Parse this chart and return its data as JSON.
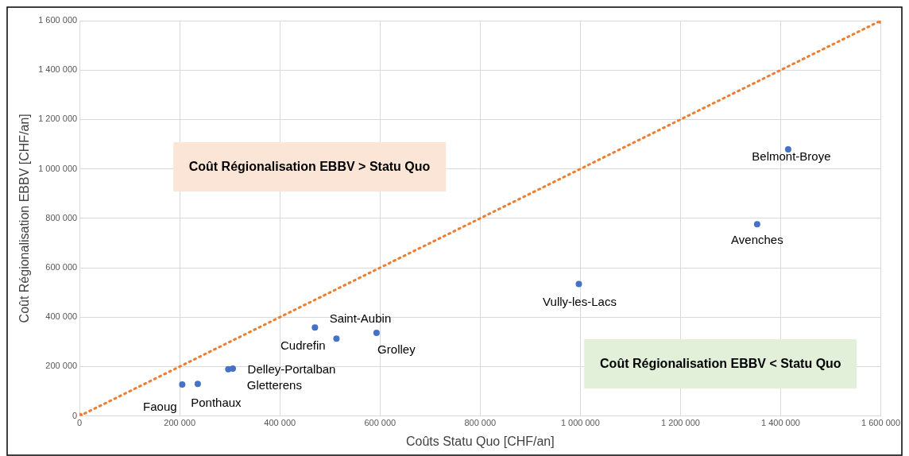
{
  "chart_data": {
    "type": "scatter",
    "xlabel": "Coûts Statu Quo [CHF/an]",
    "ylabel": "Coût Régionalisation EBBV [CHF/an]",
    "xlim": [
      0,
      1600000
    ],
    "ylim": [
      0,
      1600000
    ],
    "xticks": [
      0,
      {
        "value": 200000,
        "label": "200 000"
      },
      {
        "value": 400000,
        "label": "400 000"
      },
      {
        "value": 600000,
        "label": "600 000"
      },
      {
        "value": 800000,
        "label": "800 000"
      },
      {
        "value": 1000000,
        "label": "1 000 000"
      },
      {
        "value": 1200000,
        "label": "1 200 000"
      },
      {
        "value": 1400000,
        "label": "1 400 000"
      },
      {
        "value": 1600000,
        "label": "1 600 000"
      }
    ],
    "yticks": [
      0,
      {
        "value": 200000,
        "label": "200 000"
      },
      {
        "value": 400000,
        "label": "400 000"
      },
      {
        "value": 600000,
        "label": "600 000"
      },
      {
        "value": 800000,
        "label": "800 000"
      },
      {
        "value": 1000000,
        "label": "1 000 000"
      },
      {
        "value": 1200000,
        "label": "1 200 000"
      },
      {
        "value": 1400000,
        "label": "1 400 000"
      },
      {
        "value": 1600000,
        "label": "1 600 000"
      }
    ],
    "grid": true,
    "legend": false,
    "series": [
      {
        "color": "#4472c4",
        "marker": "circle",
        "x": [
          205000,
          236000,
          297000,
          306000,
          470000,
          513000,
          593000,
          997000,
          1353000,
          1415000
        ],
        "values": [
          127000,
          130000,
          189000,
          192000,
          358000,
          313000,
          336000,
          534000,
          776000,
          1079000
        ]
      },
      {
        "type": "line",
        "color": "#ed7d31",
        "marker": "circle",
        "line_style": "dotted",
        "x": [
          0,
          1600000
        ],
        "values": [
          0,
          1600000
        ]
      }
    ],
    "annotations": [
      {
        "text": "Faoug",
        "x": 205000,
        "y": 127000
      },
      {
        "text": "Ponthaux",
        "x": 236000,
        "y": 130000
      },
      {
        "text": "Gletterens",
        "x": 297000,
        "y": 189000
      },
      {
        "text": "Delley-Portalban",
        "x": 306000,
        "y": 192000
      },
      {
        "text": "Cudrefin",
        "x": 470000,
        "y": 358000
      },
      {
        "text": "Saint-Aubin",
        "x": 513000,
        "y": 313000
      },
      {
        "text": "Grolley",
        "x": 593000,
        "y": 336000
      },
      {
        "text": "Vully-les-Lacs",
        "x": 997000,
        "y": 534000
      },
      {
        "text": "Avenches",
        "x": 1353000,
        "y": 776000
      },
      {
        "text": "Belmont-Broye",
        "x": 1415000,
        "y": 1079000
      },
      "Coût Régionalisation EBBV > Statu Quo",
      "Coût Régionalisation EBBV < Statu Quo"
    ]
  }
}
